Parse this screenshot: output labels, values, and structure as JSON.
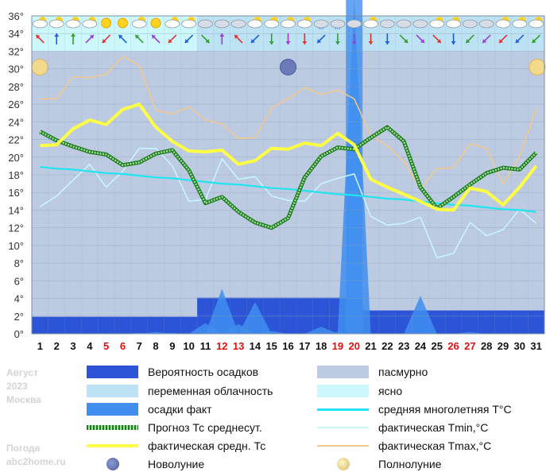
{
  "chart_data": {
    "type": "line",
    "xlabel": "",
    "ylabel": "",
    "ylim": [
      0,
      36
    ],
    "yticks": [
      "0°",
      "2°",
      "4°",
      "6°",
      "8°",
      "10°",
      "12°",
      "14°",
      "16°",
      "18°",
      "20°",
      "22°",
      "24°",
      "26°",
      "28°",
      "30°",
      "32°",
      "34°",
      "36°"
    ],
    "days": [
      1,
      2,
      3,
      4,
      5,
      6,
      7,
      8,
      9,
      10,
      11,
      12,
      13,
      14,
      15,
      16,
      17,
      18,
      19,
      20,
      21,
      22,
      23,
      24,
      25,
      26,
      27,
      28,
      29,
      30,
      31
    ],
    "red_days": [
      5,
      6,
      12,
      13,
      19,
      20,
      26,
      27
    ],
    "series": [
      {
        "name": "фактическая средн. Тс",
        "color": "#ffff44",
        "values": [
          21.3,
          21.4,
          23.2,
          24.2,
          23.7,
          25.4,
          26.0,
          23.4,
          21.8,
          20.7,
          20.6,
          20.8,
          19.2,
          19.6,
          21.0,
          20.9,
          21.6,
          21.3,
          22.7,
          21.4,
          17.5,
          16.6,
          15.8,
          15.0,
          14.1,
          14.0,
          16.5,
          16.1,
          14.6,
          16.6,
          19.0
        ]
      },
      {
        "name": "Прогноз Тс среднесут.",
        "color": "#2e9a2e",
        "values": [
          22.9,
          21.9,
          21.2,
          20.6,
          20.3,
          19.1,
          19.4,
          20.4,
          20.8,
          18.5,
          14.8,
          15.5,
          13.8,
          12.6,
          12.0,
          13.1,
          17.7,
          20.1,
          21.1,
          20.9,
          22.2,
          23.4,
          21.8,
          16.6,
          14.2,
          15.5,
          16.9,
          18.2,
          18.8,
          18.6,
          20.5
        ]
      },
      {
        "name": "средняя многолетняя T°C",
        "color": "#22e4f0",
        "values": [
          18.9,
          18.7,
          18.6,
          18.4,
          18.2,
          18.1,
          17.9,
          17.7,
          17.6,
          17.4,
          17.2,
          17.0,
          16.9,
          16.7,
          16.5,
          16.4,
          16.2,
          16.0,
          15.8,
          15.7,
          15.5,
          15.3,
          15.2,
          15.0,
          14.8,
          14.6,
          14.5,
          14.3,
          14.1,
          14.0,
          13.8
        ]
      },
      {
        "name": "фактическая Tmin,°C",
        "color": "#c8f8fc",
        "values": [
          14.4,
          15.6,
          17.4,
          19.2,
          16.6,
          18.4,
          21.0,
          21.0,
          19.0,
          15.0,
          15.2,
          19.8,
          17.5,
          17.8,
          15.6,
          15.1,
          15.0,
          17.0,
          17.6,
          18.1,
          13.3,
          12.3,
          12.5,
          13.2,
          8.6,
          9.1,
          12.6,
          11.1,
          11.8,
          14.1,
          12.5
        ]
      },
      {
        "name": "фактическая Tmax,°C",
        "color": "#f5c88a",
        "values": [
          26.6,
          26.6,
          29.1,
          29.0,
          29.4,
          31.4,
          30.4,
          25.3,
          24.9,
          25.7,
          24.2,
          23.8,
          22.1,
          22.2,
          25.6,
          26.6,
          27.9,
          27.1,
          27.6,
          26.6,
          22.5,
          21.3,
          19.5,
          16.4,
          18.7,
          18.8,
          21.5,
          21.0,
          17.0,
          20.1,
          25.5
        ]
      }
    ],
    "precip_probability_pct": [
      8,
      8,
      8,
      8,
      8,
      8,
      8,
      8,
      8,
      8,
      17,
      17,
      17,
      17,
      17,
      17,
      17,
      17,
      17,
      17,
      11,
      11,
      11,
      11,
      11,
      11,
      11,
      11,
      11,
      11,
      11
    ],
    "precip_fact_mm": [
      0,
      0,
      0,
      0,
      0,
      0,
      0.1,
      0.2,
      0.1,
      0,
      1.2,
      5.1,
      1.1,
      3.6,
      0.3,
      0,
      0,
      0.8,
      0.2,
      40,
      0,
      0,
      0,
      4.3,
      0,
      0,
      0.2,
      0,
      0,
      0,
      0
    ],
    "cloudiness": [
      "ясно",
      "ясно",
      "ясно",
      "ясно",
      "ясно",
      "ясно",
      "ясно",
      "ясно",
      "ясно",
      "ясно",
      "переменная облачность",
      "переменная облачность",
      "переменная облачность",
      "переменная облачность",
      "переменная облачность",
      "переменная облачность",
      "переменная облачность",
      "переменная облачность",
      "переменная облачность",
      "переменная облачность",
      "переменная облачность",
      "переменная облачность",
      "переменная облачность",
      "переменная облачность",
      "переменная облачность",
      "переменная облачность",
      "переменная облачность",
      "переменная облачность",
      "переменная облачность",
      "переменная облачность",
      "переменная облачность"
    ],
    "moon_phases": [
      {
        "day": 1,
        "phase": "Полнолуние"
      },
      {
        "day": 16,
        "phase": "Новолуние"
      },
      {
        "day": 31,
        "phase": "Полнолуние"
      }
    ],
    "weather_icons": [
      "partly-cloudy",
      "partly-cloudy",
      "partly-cloudy",
      "partly-cloudy",
      "sun",
      "sun",
      "partly-cloudy",
      "sun",
      "partly-cloudy",
      "partly-cloudy",
      "cloudy",
      "cloudy",
      "cloudy",
      "partly-cloudy",
      "partly-cloudy",
      "partly-cloudy",
      "partly-cloudy",
      "cloudy-rain",
      "cloudy-rain",
      "cloudy-rain",
      "partly-cloudy",
      "cloudy",
      "cloudy",
      "cloudy",
      "partly-cloudy",
      "partly-cloudy",
      "cloudy",
      "cloudy",
      "partly-cloudy",
      "partly-cloudy",
      "partly-cloudy"
    ],
    "wind_arrows": [
      "up-left",
      "up",
      "up",
      "up-right",
      "down-left",
      "up-left",
      "up-left",
      "up-left",
      "down-left",
      "down-left",
      "down-right",
      "up",
      "up-left",
      "down-left",
      "down",
      "down",
      "down",
      "down-left",
      "down",
      "down",
      "down",
      "down",
      "down-right",
      "down-right",
      "down-right",
      "down",
      "down-left",
      "down-left",
      "down-left",
      "down-left",
      "down-left"
    ]
  },
  "legend": {
    "items": [
      {
        "label": "Вероятность осадков",
        "swatch": "dark-blue-box",
        "color": "#2b55d6"
      },
      {
        "label": "пасмурно",
        "swatch": "slate-box",
        "color": "#bccbe2"
      },
      {
        "label": "переменная облачность",
        "swatch": "light-blue-box",
        "color": "#bde2f4"
      },
      {
        "label": "ясно",
        "swatch": "cyan-box",
        "color": "#ccf8fb"
      },
      {
        "label": "осадки факт",
        "swatch": "blue-box",
        "color": "#3f8ef0"
      },
      {
        "label": "средняя многолетняя T°C",
        "swatch": "line",
        "color": "#22e4f0"
      },
      {
        "label": "Прогноз Тс среднесут.",
        "swatch": "green-dotted-line",
        "color": "#2e9a2e"
      },
      {
        "label": "фактическая Tmin,°C",
        "swatch": "line",
        "color": "#c8f8fc"
      },
      {
        "label": "фактическая средн. Тс",
        "swatch": "thick-line",
        "color": "#ffff44"
      },
      {
        "label": "фактическая Tmax,°C",
        "swatch": "line",
        "color": "#f5c88a"
      },
      {
        "label": "Новолуние",
        "swatch": "new-moon-icon",
        "color": "#6b7ab8"
      },
      {
        "label": "Полнолуние",
        "swatch": "full-moon-icon",
        "color": "#f2d98c"
      }
    ]
  },
  "side_text": {
    "month": "Август",
    "year": "2023",
    "city": "Москва",
    "site_line1": "Погода",
    "site_line2": "abc2home.ru"
  },
  "colors": {
    "weekday": "#111111",
    "weekend": "#e01010",
    "grid": "#8aa0b8"
  }
}
